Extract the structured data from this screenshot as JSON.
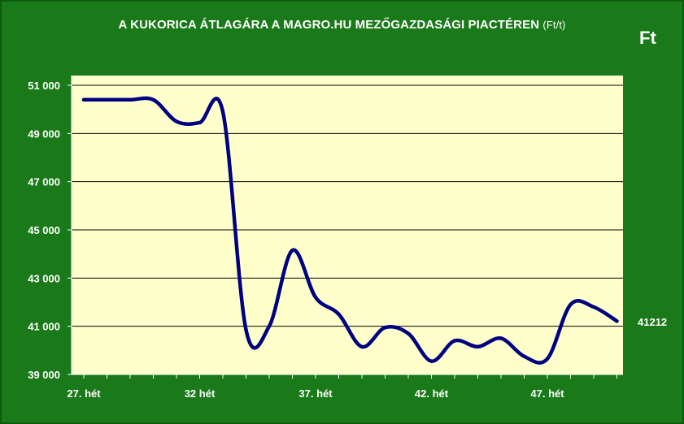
{
  "header": {
    "title_main": "A KUKORICA ÁTLAGÁRA A MAGRO.HU MEZŐGAZDASÁGI PIACTÉREN",
    "title_unit": "(Ft/t)",
    "unit_label": "Ft",
    "last_value_label": "41212"
  },
  "colors": {
    "background": "#1a7a1a",
    "plot_area": "#ffffcc",
    "line": "#000080",
    "text": "#ffffff",
    "grid": "#000000"
  },
  "chart_data": {
    "type": "line",
    "title": "A KUKORICA ÁTLAGÁRA A MAGRO.HU MEZŐGAZDASÁGI PIACTÉREN (Ft/t)",
    "xlabel": "",
    "ylabel": "Ft",
    "ylim": [
      39000,
      51000
    ],
    "yticks": [
      39000,
      41000,
      43000,
      45000,
      47000,
      49000,
      51000
    ],
    "ytick_labels": [
      "39 000",
      "41 000",
      "43 000",
      "45 000",
      "47 000",
      "49 000",
      "51 000"
    ],
    "xlim": [
      27,
      50
    ],
    "xticks": [
      27,
      32,
      37,
      42,
      47
    ],
    "xtick_labels": [
      "27. hét",
      "32 hét",
      "37. hét",
      "42. hét",
      "47. hét"
    ],
    "grid": true,
    "legend": "none",
    "series": [
      {
        "x": [
          27,
          28,
          29,
          30,
          31,
          32,
          33,
          34,
          35,
          36,
          37,
          38,
          39,
          40,
          41,
          42,
          43,
          44,
          45,
          46,
          47,
          48,
          49,
          50
        ],
        "values": [
          50400,
          50400,
          50400,
          50400,
          49500,
          49450,
          49900,
          40850,
          41000,
          44150,
          42200,
          41500,
          40150,
          40950,
          40700,
          39550,
          40400,
          40150,
          40500,
          39750,
          39650,
          41900,
          41800,
          41212
        ]
      }
    ]
  }
}
